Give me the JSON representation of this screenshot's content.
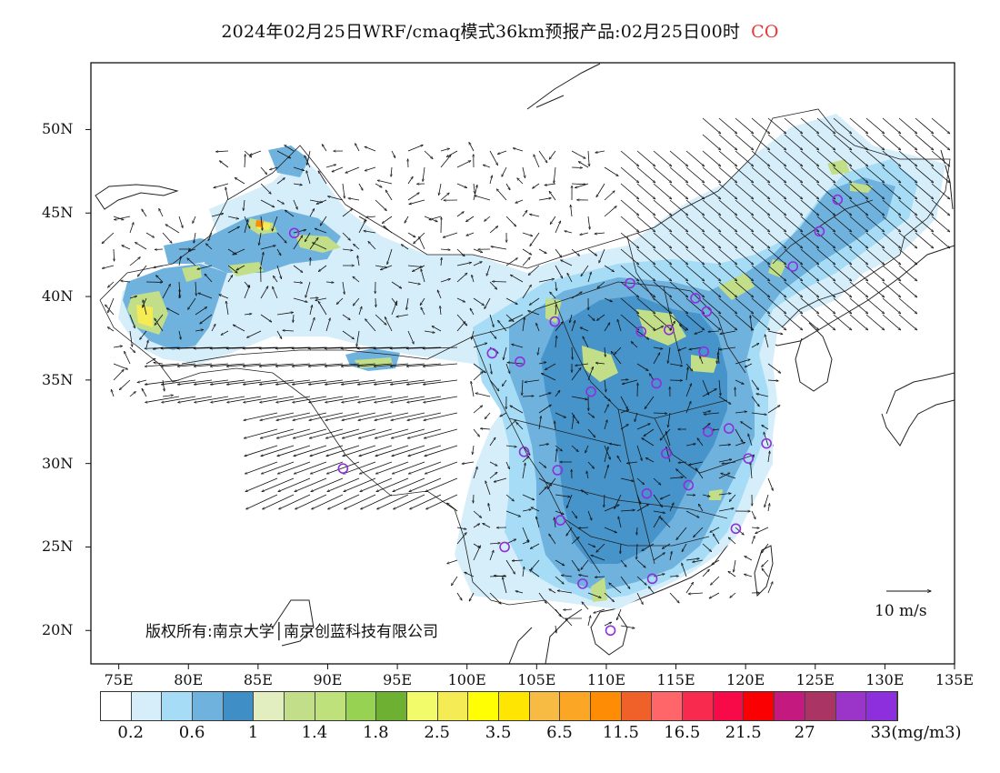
{
  "title": {
    "text": "2024年02月25日WRF/cmaq模式36km预报产品:02月25日00时",
    "species": "CO",
    "species_color": "#e53935"
  },
  "axes": {
    "y_labels": [
      "50N",
      "45N",
      "40N",
      "35N",
      "30N",
      "25N",
      "20N"
    ],
    "y_values": [
      50,
      45,
      40,
      35,
      30,
      25,
      20
    ],
    "x_labels": [
      "75E",
      "80E",
      "85E",
      "90E",
      "95E",
      "100E",
      "105E",
      "110E",
      "115E",
      "120E",
      "125E",
      "130E",
      "135E"
    ],
    "x_values": [
      75,
      80,
      85,
      90,
      95,
      100,
      105,
      110,
      115,
      120,
      125,
      130,
      135
    ],
    "lon_range": [
      73,
      135
    ],
    "lat_range": [
      18,
      54
    ]
  },
  "copyright": "版权所有:南京大学│南京创蓝科技有限公司",
  "wind_scale": {
    "label": "10 m/s"
  },
  "legend": {
    "colors": [
      "#ffffff",
      "#d6eefa",
      "#a6dcf5",
      "#6fb2de",
      "#3f8ec6",
      "#e3eec0",
      "#c2de88",
      "#bee17c",
      "#97d253",
      "#6eb032",
      "#f2fc6b",
      "#f5eb55",
      "#fffe02",
      "#ffe502",
      "#f7ba43",
      "#fca625",
      "#fe8c04",
      "#f06029",
      "#ff6669",
      "#f82b4e",
      "#f80a49",
      "#fb0003",
      "#c41a80",
      "#aa3565",
      "#9b35c9",
      "#8e2fdd"
    ],
    "labels": [
      "0.2",
      "0.6",
      "1",
      "1.4",
      "1.8",
      "2.5",
      "3.5",
      "6.5",
      "11.5",
      "16.5",
      "21.5",
      "27",
      "33(mg/m3)"
    ]
  },
  "stations": [
    [
      87.6,
      43.8
    ],
    [
      91.1,
      29.7
    ],
    [
      101.8,
      36.6
    ],
    [
      103.8,
      36.1
    ],
    [
      106.3,
      38.5
    ],
    [
      111.7,
      40.8
    ],
    [
      112.5,
      37.9
    ],
    [
      114.5,
      38.0
    ],
    [
      116.4,
      39.9
    ],
    [
      117.2,
      39.1
    ],
    [
      117.0,
      36.7
    ],
    [
      113.6,
      34.8
    ],
    [
      108.9,
      34.3
    ],
    [
      104.1,
      30.7
    ],
    [
      106.5,
      29.6
    ],
    [
      106.7,
      26.6
    ],
    [
      102.7,
      25.0
    ],
    [
      108.3,
      22.8
    ],
    [
      113.3,
      23.1
    ],
    [
      110.3,
      20.0
    ],
    [
      112.9,
      28.2
    ],
    [
      115.9,
      28.7
    ],
    [
      114.3,
      30.6
    ],
    [
      117.3,
      31.9
    ],
    [
      118.8,
      32.1
    ],
    [
      120.2,
      30.3
    ],
    [
      121.5,
      31.2
    ],
    [
      119.3,
      26.1
    ],
    [
      123.4,
      41.8
    ],
    [
      125.3,
      43.9
    ],
    [
      126.6,
      45.8
    ]
  ]
}
